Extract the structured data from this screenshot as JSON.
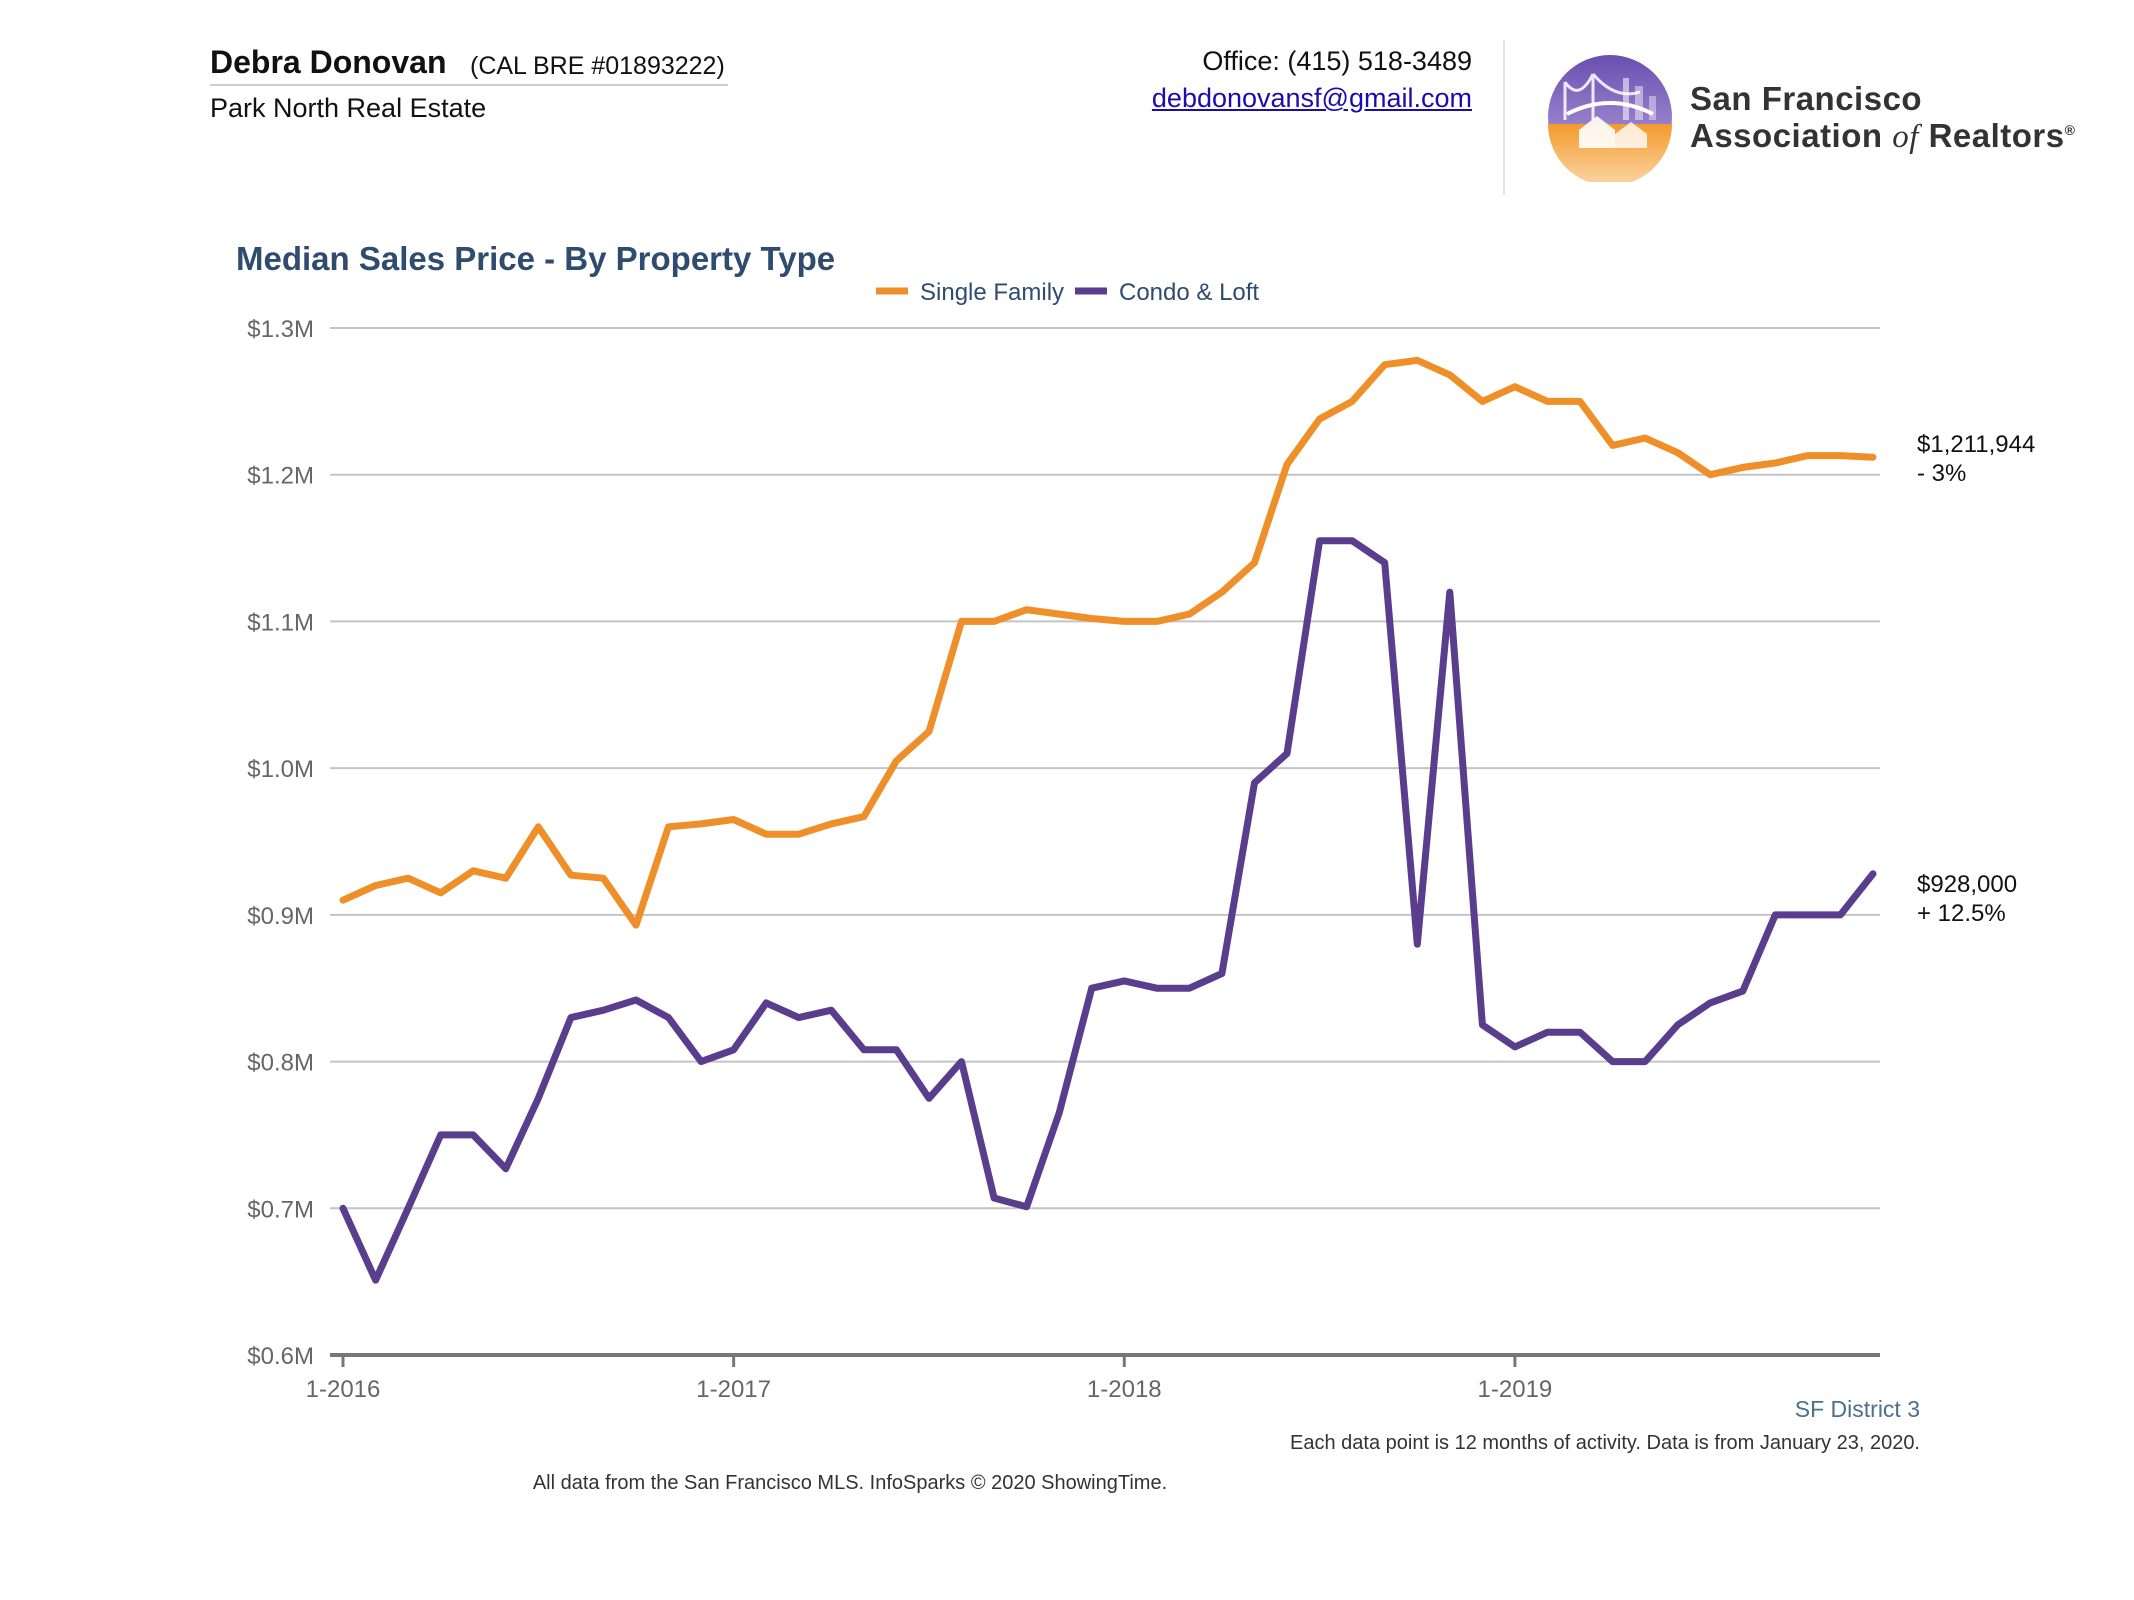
{
  "header": {
    "agent_name": "Debra Donovan",
    "license": "(CAL BRE #01893222)",
    "company": "Park North Real Estate",
    "office": "Office: (415) 518-3489",
    "email": "debdonovansf@gmail.com"
  },
  "logo": {
    "line1": "San Francisco",
    "line2_a": "Association",
    "line2_of": "of",
    "line2_b": "Realtors",
    "registered": "®"
  },
  "chart_data": {
    "type": "line",
    "title": "Median Sales Price - By Property Type",
    "xlabel": "",
    "ylabel": "",
    "y_tick_labels": [
      "$0.6M",
      "$0.7M",
      "$0.8M",
      "$0.9M",
      "$1.0M",
      "$1.1M",
      "$1.2M",
      "$1.3M"
    ],
    "y_ticks": [
      600000,
      700000,
      800000,
      900000,
      1000000,
      1100000,
      1200000,
      1300000
    ],
    "ylim": [
      600000,
      1300000
    ],
    "x_tick_labels": [
      "1-2016",
      "1-2017",
      "1-2018",
      "1-2019"
    ],
    "x_tick_index": [
      0,
      12,
      24,
      36
    ],
    "grid": true,
    "legend_position": "top-center",
    "series": [
      {
        "name": "Single Family",
        "color": "#ee8f2a",
        "values": [
          910000,
          920000,
          925000,
          915000,
          930000,
          925000,
          960000,
          927000,
          925000,
          893000,
          960000,
          962000,
          965000,
          955000,
          955000,
          962000,
          967000,
          1005000,
          1025000,
          1100000,
          1100000,
          1108000,
          1105000,
          1102000,
          1100000,
          1100000,
          1105000,
          1120000,
          1140000,
          1207000,
          1238000,
          1250000,
          1275000,
          1278000,
          1268000,
          1250000,
          1260000,
          1250000,
          1250000,
          1220000,
          1225000,
          1215000,
          1200000,
          1205000,
          1208000,
          1213000,
          1213000,
          1211944
        ],
        "end_label": "$1,211,944",
        "end_change": "- 3%"
      },
      {
        "name": "Condo & Loft",
        "color": "#5a3d8c",
        "values": [
          700000,
          651000,
          700000,
          750000,
          750000,
          727000,
          775000,
          830000,
          835000,
          842000,
          830000,
          800000,
          808000,
          840000,
          830000,
          835000,
          808000,
          808000,
          775000,
          800000,
          707000,
          701000,
          765000,
          850000,
          855000,
          850000,
          850000,
          860000,
          990000,
          1010000,
          1155000,
          1155000,
          1140000,
          880000,
          1120000,
          825000,
          810000,
          820000,
          820000,
          800000,
          800000,
          825000,
          840000,
          848000,
          900000,
          900000,
          900000,
          928000
        ],
        "end_label": "$928,000",
        "end_change": "+ 12.5%"
      }
    ]
  },
  "footer": {
    "region": "SF District 3",
    "note": "Each data point is 12 months of activity. Data is from January 23, 2020.",
    "source": "All data from the San Francisco MLS. InfoSparks © 2020 ShowingTime."
  }
}
